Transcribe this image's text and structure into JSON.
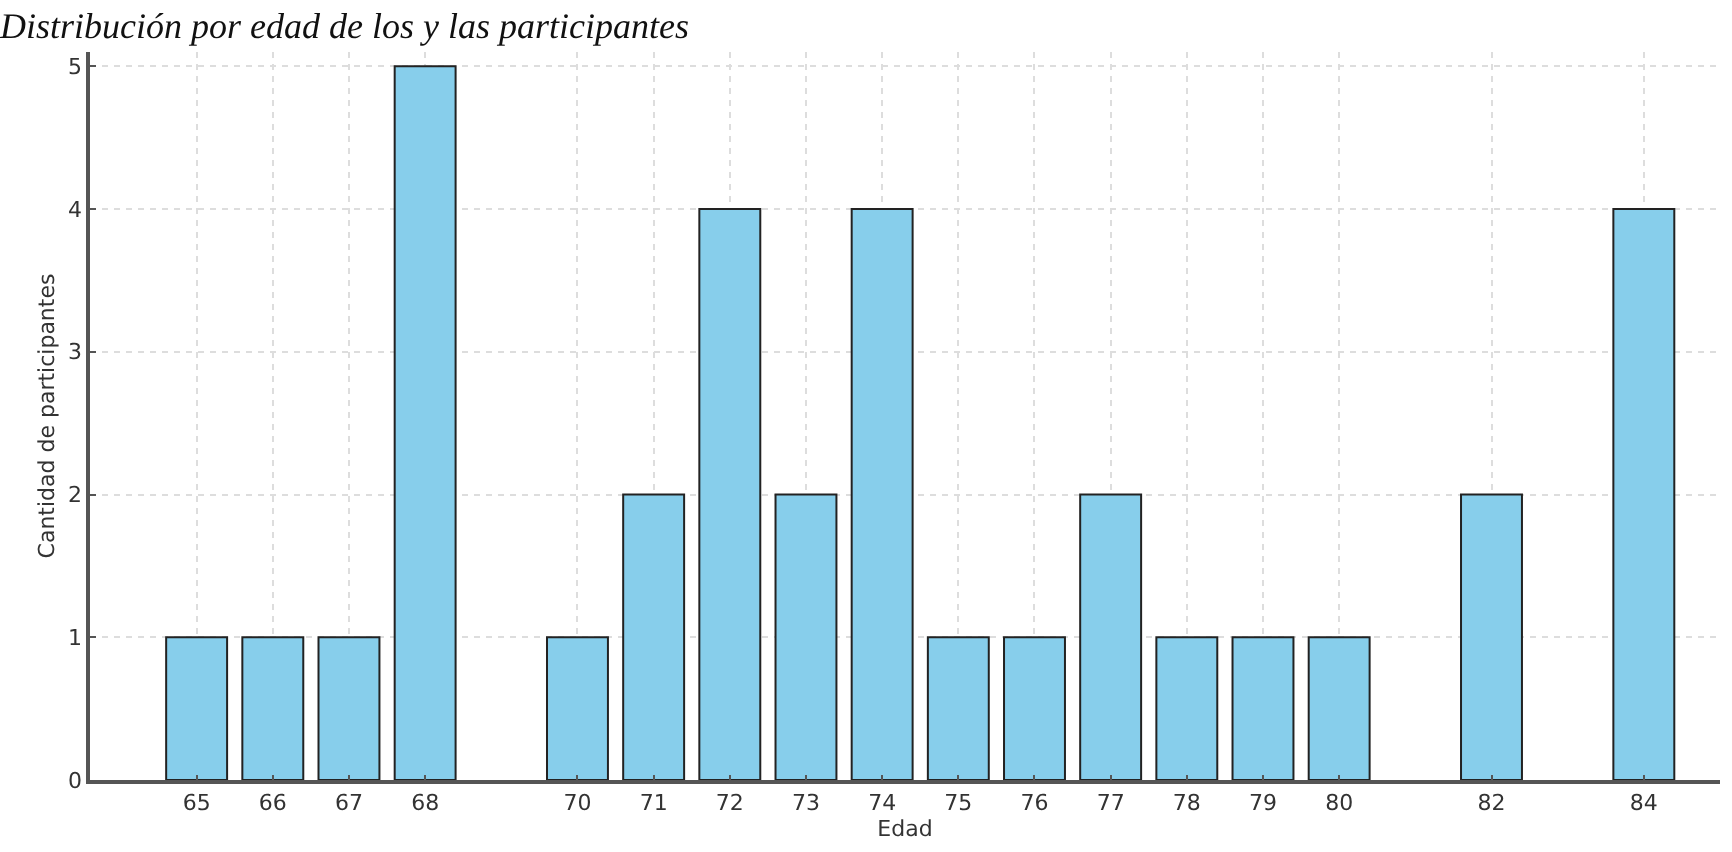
{
  "chart_data": {
    "type": "bar",
    "title": "Distribución por edad de los y las participantes",
    "xlabel": "Edad",
    "ylabel": "Cantidad de participantes",
    "x": [
      65,
      66,
      67,
      68,
      70,
      71,
      72,
      73,
      74,
      75,
      76,
      77,
      78,
      79,
      80,
      82,
      84
    ],
    "values": [
      1,
      1,
      1,
      5,
      1,
      2,
      4,
      2,
      4,
      1,
      1,
      2,
      1,
      1,
      1,
      2,
      4
    ],
    "color": "#87ceeb",
    "xlim": [
      63.6,
      85.0
    ],
    "xticks": [
      65,
      66,
      67,
      68,
      70,
      71,
      72,
      73,
      74,
      75,
      76,
      77,
      78,
      79,
      80,
      82,
      84
    ],
    "ylim": [
      0,
      5.1
    ],
    "yticks": [
      0,
      1,
      2,
      3,
      4,
      5
    ],
    "grid": true
  }
}
